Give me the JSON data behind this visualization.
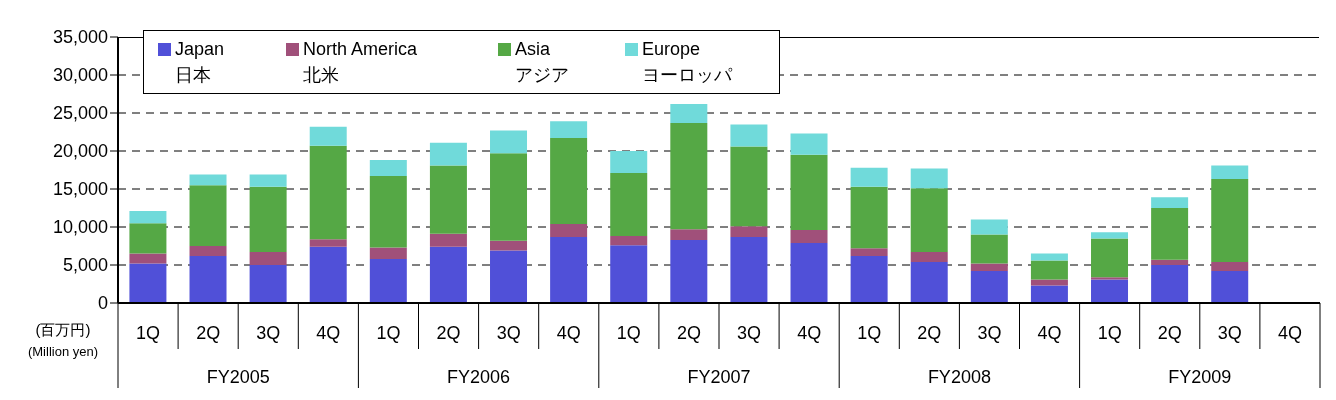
{
  "chart_data": {
    "type": "bar",
    "stacked": true,
    "ylabel": "(百万円)\n(Million yen)",
    "categories": [
      "1Q",
      "2Q",
      "3Q",
      "4Q",
      "1Q",
      "2Q",
      "3Q",
      "4Q",
      "1Q",
      "2Q",
      "3Q",
      "4Q",
      "1Q",
      "2Q",
      "3Q",
      "4Q",
      "1Q",
      "2Q",
      "3Q",
      "4Q"
    ],
    "series": [
      {
        "name": "Japan\n日本",
        "color": "#5050d8",
        "values": [
          5200,
          6200,
          5000,
          7400,
          5800,
          7400,
          6900,
          8700,
          7600,
          8300,
          8700,
          7900,
          6200,
          5400,
          4200,
          2300,
          3100,
          5000,
          4200,
          null
        ]
      },
      {
        "name": "North America\n北米",
        "color": "#a0507a",
        "values": [
          1300,
          1300,
          1700,
          1000,
          1500,
          1700,
          1300,
          1700,
          1200,
          1400,
          1400,
          1700,
          1000,
          1300,
          1000,
          800,
          300,
          700,
          1200,
          null
        ]
      },
      {
        "name": "Asia\nアジア",
        "color": "#55a845",
        "values": [
          4000,
          8000,
          8600,
          12300,
          9400,
          9000,
          11500,
          11300,
          8300,
          14000,
          10500,
          9900,
          8100,
          8400,
          3800,
          2500,
          5100,
          6800,
          10900,
          null
        ]
      },
      {
        "name": "Europe\nヨーロッパ",
        "color": "#70dada",
        "values": [
          1600,
          1400,
          1600,
          2500,
          2100,
          3000,
          3000,
          2200,
          2900,
          2500,
          2900,
          2800,
          2500,
          2600,
          2000,
          900,
          800,
          1400,
          1800,
          null
        ]
      }
    ],
    "annotations": [
      "FY2005",
      "FY2006",
      "FY2007",
      "FY2008",
      "FY2009"
    ],
    "ylim": [
      0,
      35000
    ],
    "yticks": [
      {
        "value": 0,
        "label": "0"
      },
      {
        "value": 5000,
        "label": "5,000"
      },
      {
        "value": 10000,
        "label": "10,000"
      },
      {
        "value": 15000,
        "label": "15,000"
      },
      {
        "value": 20000,
        "label": "20,000"
      },
      {
        "value": 25000,
        "label": "25,000"
      },
      {
        "value": 30000,
        "label": "30,000"
      },
      {
        "value": 35000,
        "label": "35,000"
      }
    ],
    "grid": "y",
    "legend": "top left"
  }
}
